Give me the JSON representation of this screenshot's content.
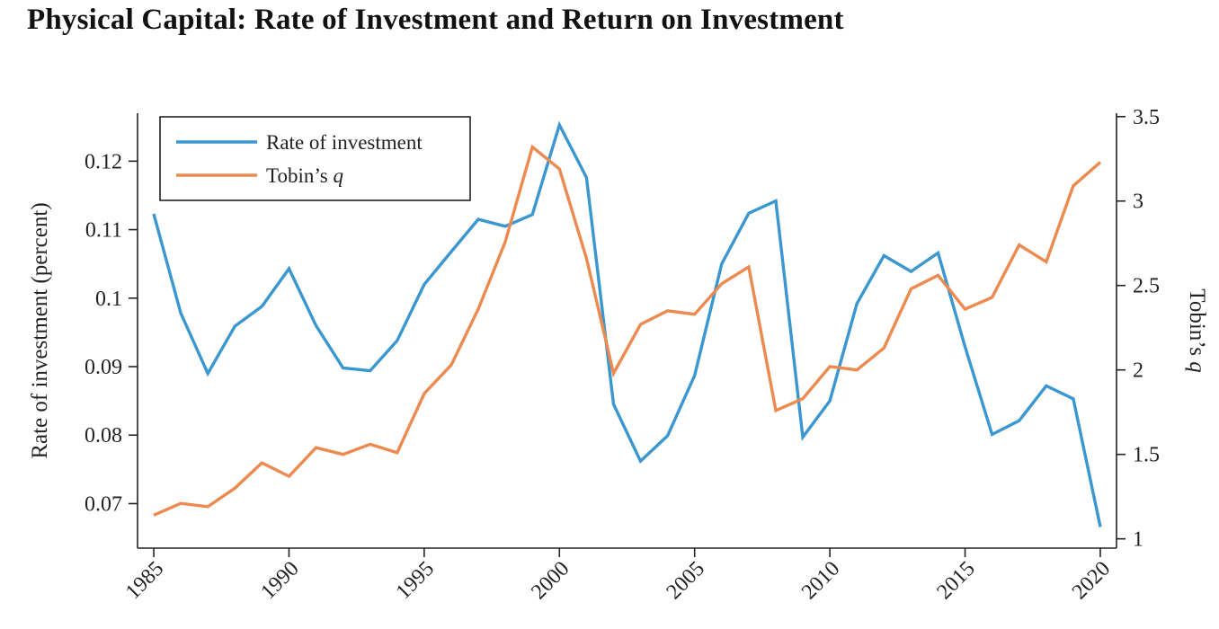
{
  "chart_data": {
    "type": "line",
    "title": "Physical Capital: Rate of Investment and Return on Investment",
    "ylabel": "Rate of investment (percent)",
    "y2label": "Tobin’s ",
    "y2label_italic": "q",
    "ylim": [
      0.0635,
      0.127
    ],
    "y2lim": [
      0.945,
      3.52
    ],
    "yticks": [
      0.07,
      0.08,
      0.09,
      0.1,
      0.11,
      0.12
    ],
    "yticklabels": [
      "0.07",
      "0.08",
      "0.09",
      "0.1",
      "0.11",
      "0.12"
    ],
    "y2ticks": [
      1,
      1.5,
      2,
      2.5,
      3,
      3.5
    ],
    "y2ticklabels": [
      "1",
      "1.5",
      "2",
      "2.5",
      "3",
      "3.5"
    ],
    "xlim": [
      1984.4,
      2020.6
    ],
    "xticks": [
      1985,
      1990,
      1995,
      2000,
      2005,
      2010,
      2015,
      2020
    ],
    "xticklabels": [
      "1985",
      "1990",
      "1995",
      "2000",
      "2005",
      "2010",
      "2015",
      "2020"
    ],
    "x": [
      1985,
      1986,
      1987,
      1988,
      1989,
      1990,
      1991,
      1992,
      1993,
      1994,
      1995,
      1996,
      1997,
      1998,
      1999,
      2000,
      2001,
      2002,
      2003,
      2004,
      2005,
      2006,
      2007,
      2008,
      2009,
      2010,
      2011,
      2012,
      2013,
      2014,
      2015,
      2016,
      2017,
      2018,
      2019,
      2020
    ],
    "legend_position": "top-left",
    "grid": false,
    "series": [
      {
        "name": "Rate of investment",
        "axis": "left",
        "color": "#3a97cf",
        "values": [
          0.1123,
          0.0978,
          0.089,
          0.0959,
          0.0988,
          0.1043,
          0.096,
          0.0898,
          0.0894,
          0.0938,
          0.102,
          0.1068,
          0.1115,
          0.1105,
          0.1122,
          0.1253,
          0.1176,
          0.0845,
          0.0762,
          0.0799,
          0.0887,
          0.105,
          0.1124,
          0.1142,
          0.0797,
          0.085,
          0.0992,
          0.1062,
          0.1039,
          0.1066,
          0.0929,
          0.0801,
          0.0821,
          0.0872,
          0.0853,
          0.0666
        ]
      },
      {
        "name": "Tobin’s q",
        "axis": "right",
        "color": "#ec8a4f",
        "values": [
          1.14,
          1.21,
          1.19,
          1.3,
          1.45,
          1.37,
          1.54,
          1.5,
          1.56,
          1.51,
          1.86,
          2.03,
          2.36,
          2.76,
          3.32,
          3.19,
          2.66,
          1.98,
          2.27,
          2.35,
          2.33,
          2.51,
          2.61,
          1.76,
          1.83,
          2.02,
          2.0,
          2.13,
          2.48,
          2.56,
          2.36,
          2.43,
          2.74,
          2.64,
          3.09,
          3.23
        ]
      }
    ]
  }
}
